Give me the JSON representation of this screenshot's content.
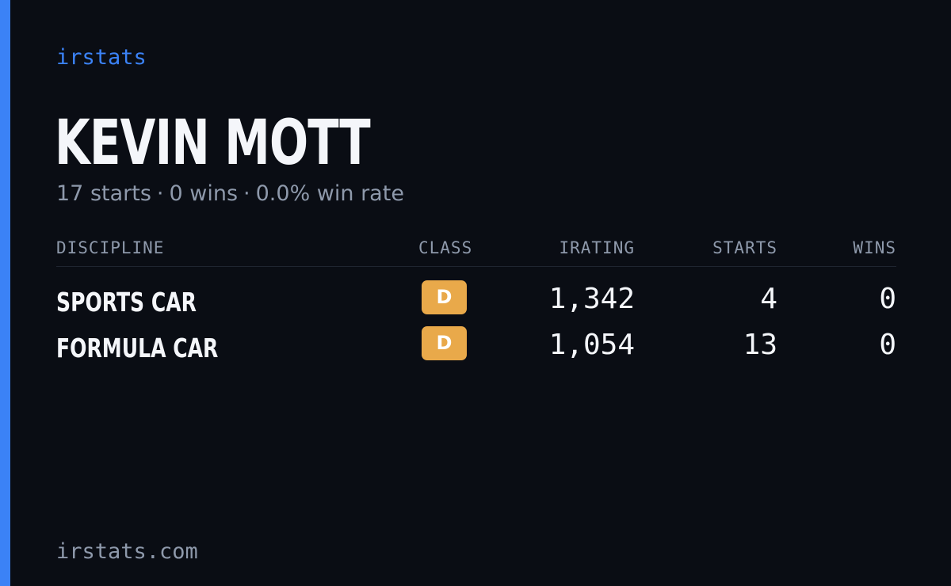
{
  "brand": "irstats",
  "colors": {
    "accent": "#3b82f6",
    "background": "#0a0d14",
    "class_d": "#e9a94a"
  },
  "driver": {
    "name": "KEVIN MOTT",
    "starts_summary": "17 starts",
    "wins_summary": "0 wins",
    "win_rate_summary": "0.0% win rate",
    "separator": "·"
  },
  "table": {
    "headers": {
      "discipline": "DISCIPLINE",
      "class": "CLASS",
      "irating": "IRATING",
      "starts": "STARTS",
      "wins": "WINS"
    },
    "rows": [
      {
        "discipline": "SPORTS CAR",
        "class": "D",
        "irating": "1,342",
        "starts": "4",
        "wins": "0"
      },
      {
        "discipline": "FORMULA CAR",
        "class": "D",
        "irating": "1,054",
        "starts": "13",
        "wins": "0"
      }
    ]
  },
  "footer": {
    "url": "irstats.com"
  }
}
